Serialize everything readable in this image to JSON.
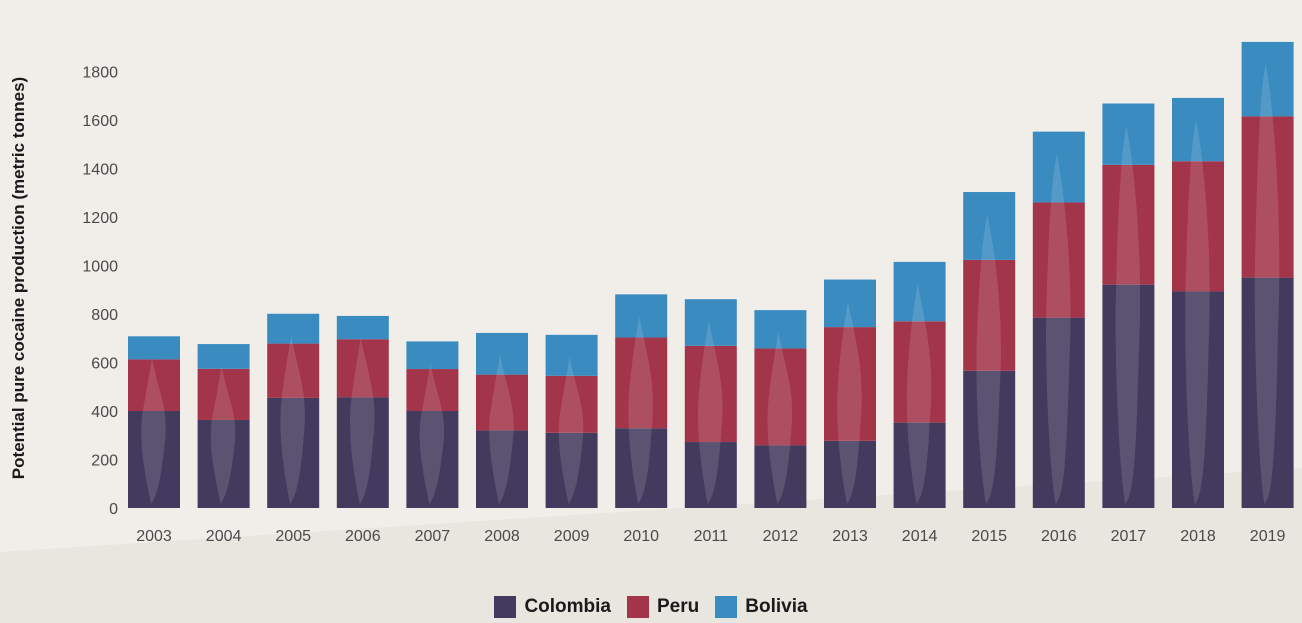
{
  "chart_data": {
    "type": "bar",
    "stacked": true,
    "ylabel": "Potential pure cocaine production (metric tonnes)",
    "xlabel": "",
    "ylim": [
      0,
      1900
    ],
    "yticks": [
      0,
      200,
      400,
      600,
      800,
      1000,
      1200,
      1400,
      1600,
      1800
    ],
    "categories": [
      "2003",
      "2004",
      "2005",
      "2006",
      "2007",
      "2008",
      "2009",
      "2010",
      "2011",
      "2012",
      "2013",
      "2014",
      "2015",
      "2016",
      "2017",
      "2018",
      "2019"
    ],
    "series": [
      {
        "name": "Colombia",
        "color": "#423b5e",
        "values": [
          400,
          363,
          454,
          456,
          400,
          320,
          310,
          329,
          272,
          258,
          277,
          352,
          566,
          785,
          921,
          893,
          950
        ]
      },
      {
        "name": "Peru",
        "color": "#a3354a",
        "values": [
          213,
          211,
          224,
          240,
          173,
          230,
          235,
          374,
          397,
          400,
          469,
          418,
          457,
          475,
          494,
          537,
          665
        ]
      },
      {
        "name": "Bolivia",
        "color": "#3a8cc0",
        "values": [
          95,
          102,
          123,
          96,
          114,
          172,
          169,
          178,
          192,
          158,
          196,
          245,
          280,
          292,
          253,
          261,
          307
        ]
      }
    ],
    "legend_position": "bottom-center",
    "grid": false
  },
  "legend": {
    "items": [
      {
        "label": "Colombia",
        "color": "#423b5e"
      },
      {
        "label": "Peru",
        "color": "#a3354a"
      },
      {
        "label": "Bolivia",
        "color": "#3a8cc0"
      }
    ]
  }
}
